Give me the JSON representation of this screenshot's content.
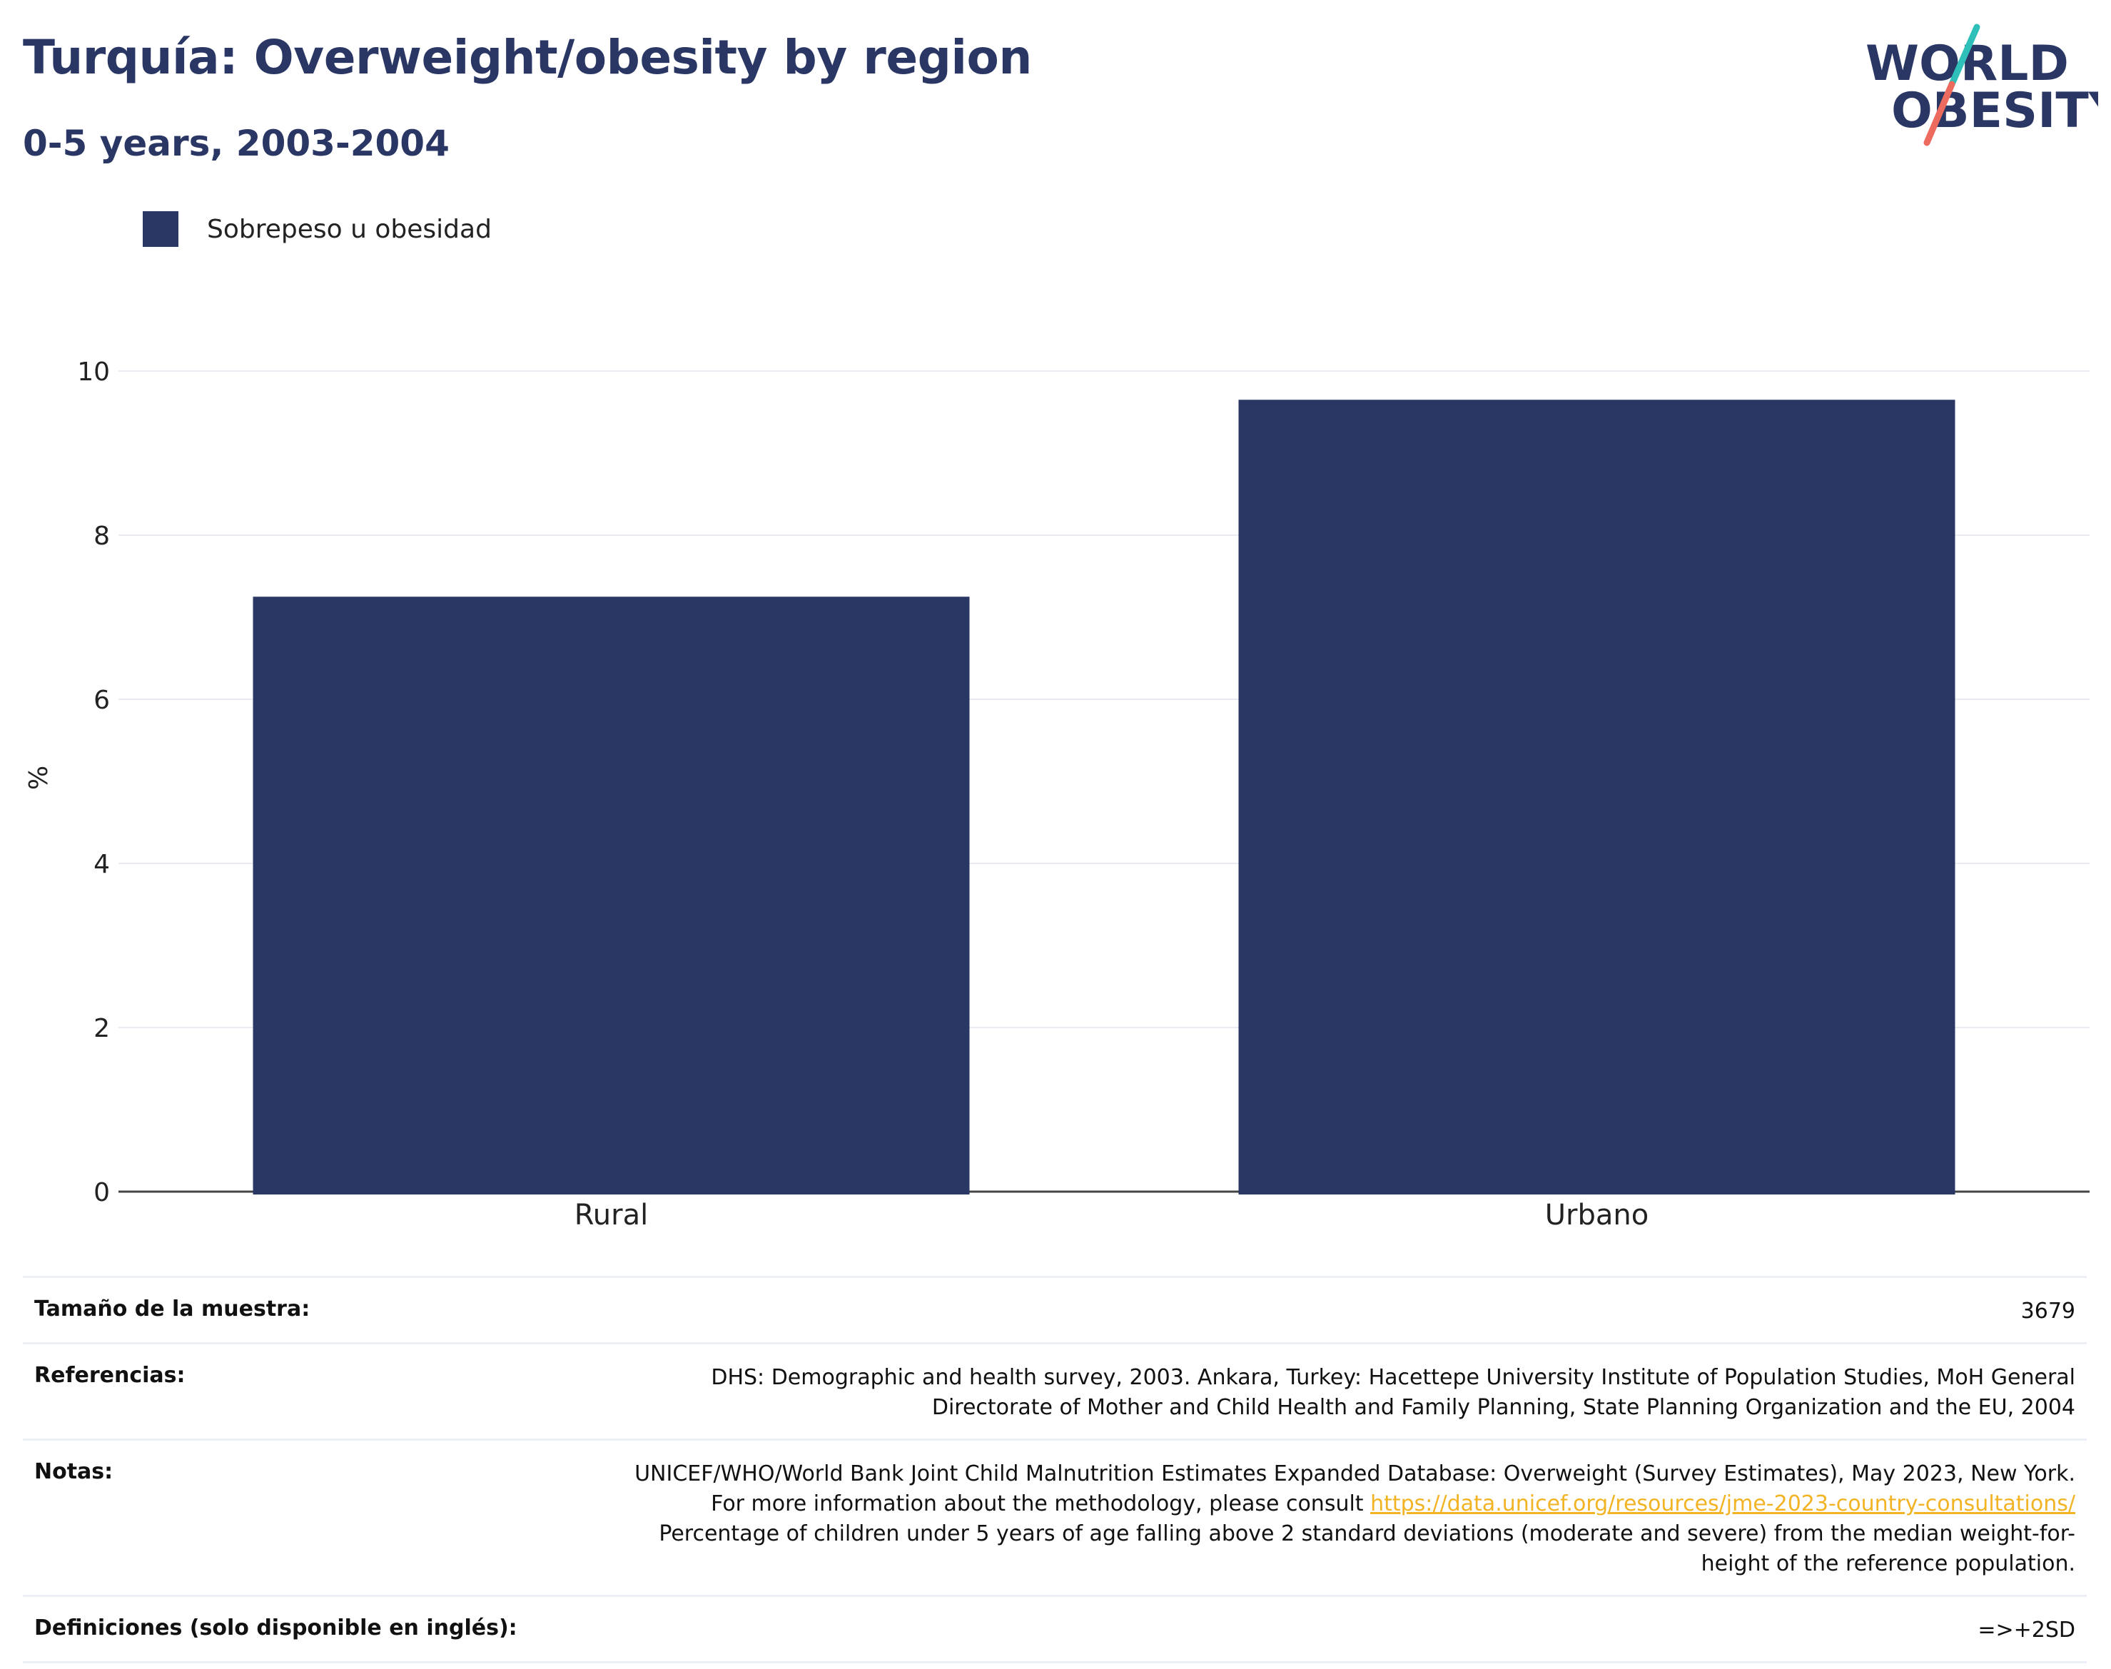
{
  "header": {
    "title": "Turquía: Overweight/obesity by region",
    "subtitle": "0-5 years, 2003-2004"
  },
  "logo": {
    "line1": "WORLD",
    "line2": "OBESITY",
    "text_color": "#2a3764",
    "slash_top_color": "#2fbfb9",
    "slash_bottom_color": "#ec6b5e"
  },
  "legend": {
    "label": "Sobrepeso u obesidad",
    "color": "#2a3764"
  },
  "chart_data": {
    "type": "bar",
    "categories": [
      "Rural",
      "Urbano"
    ],
    "series": [
      {
        "name": "Sobrepeso u obesidad",
        "values": [
          7.25,
          9.65
        ],
        "color": "#2a3764"
      }
    ],
    "ylabel": "%",
    "ylim": [
      0,
      10
    ],
    "yticks": [
      0,
      2,
      4,
      6,
      8,
      10
    ],
    "grid": true,
    "legend_position": "top-left"
  },
  "info": {
    "sample_key": "Tamaño de la muestra:",
    "sample_val": "3679",
    "refs_key": "Referencias:",
    "refs_val": "DHS: Demographic and health survey, 2003. Ankara, Turkey: Hacettepe University Institute of Population Studies, MoH General Directorate of Mother and Child Health and Family Planning, State Planning Organization and the EU, 2004",
    "notes_key": "Notas:",
    "notes_before": "UNICEF/WHO/World Bank Joint Child Malnutrition Estimates Expanded Database: Overweight (Survey Estimates), May 2023, New York. For more information about the methodology, please consult ",
    "notes_link": "https://data.unicef.org/resources/jme-2023-country-consultations/",
    "notes_after": " Percentage of children under 5 years of age falling above 2 standard deviations (moderate and severe) from the median weight-for-height of the reference population.",
    "defs_key": "Definiciones (solo disponible en inglés):",
    "defs_val": "=>+2SD"
  }
}
